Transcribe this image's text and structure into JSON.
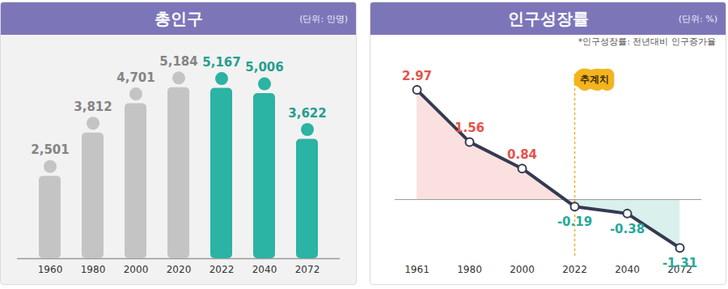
{
  "chart_data": [
    {
      "type": "bar",
      "title": "총인구",
      "subtitle": "(단위: 만명)",
      "categories": [
        "1960",
        "1980",
        "2000",
        "2020",
        "2022",
        "2040",
        "2072"
      ],
      "values": [
        2501,
        3812,
        4701,
        5184,
        5167,
        5006,
        3622
      ],
      "value_labels": [
        "2,501",
        "3,812",
        "4,701",
        "5,184",
        "5,167",
        "5,006",
        "3,622"
      ],
      "colors": [
        "#c4c4c4",
        "#c4c4c4",
        "#c4c4c4",
        "#c4c4c4",
        "#2bb3a3",
        "#2bb3a3",
        "#2bb3a3"
      ],
      "ylim": [
        0,
        5500
      ],
      "data_labels": true,
      "tick_labels": "x"
    },
    {
      "type": "line",
      "title": "인구성장률",
      "subtitle": "(단위: %)",
      "note": "*인구성장률: 전년대비 인구증가율",
      "annotations": [
        {
          "text": "추계치",
          "from": "2022"
        }
      ],
      "categories": [
        "1961",
        "1980",
        "2000",
        "2022",
        "2040",
        "2072"
      ],
      "values": [
        2.97,
        1.56,
        0.84,
        -0.19,
        -0.38,
        -1.31
      ],
      "color": "#353a52",
      "colors": [
        "#e5534b",
        "#e5534b",
        "#e5534b",
        "#26a99a",
        "#26a99a",
        "#26a99a"
      ],
      "marker": "circle",
      "ylim": [
        -1.6,
        3.4
      ],
      "data_labels": true,
      "tick_labels": "x"
    }
  ]
}
